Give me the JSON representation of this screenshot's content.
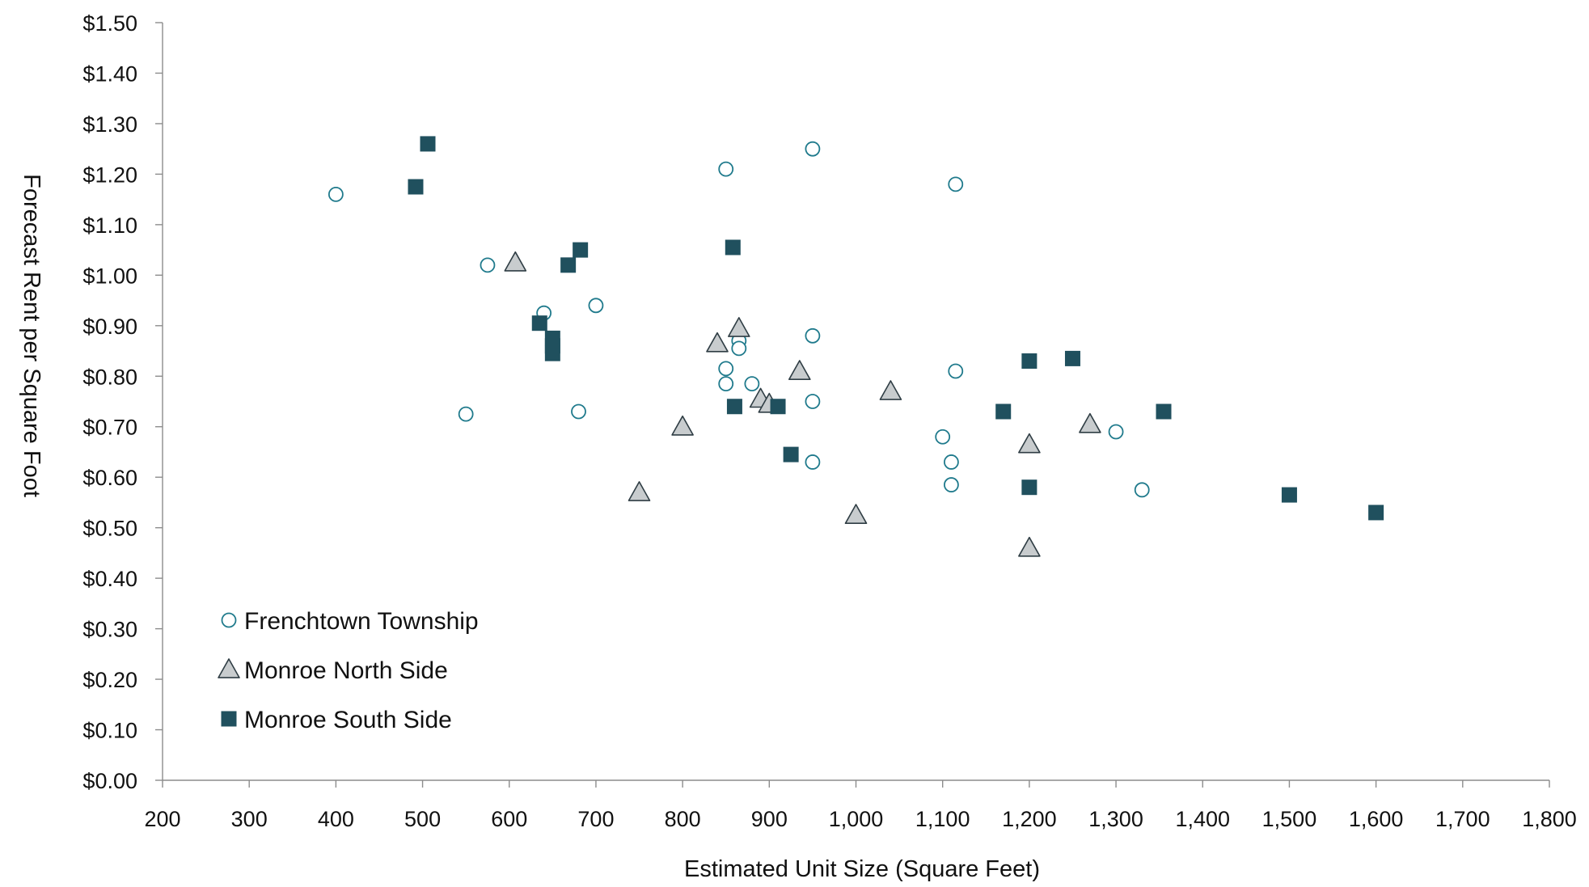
{
  "chart_data": {
    "type": "scatter",
    "xlabel": "Estimated Unit Size (Square Feet)",
    "ylabel": "Forecast Rent per Square Foot",
    "xlim": [
      200,
      1800
    ],
    "ylim": [
      0,
      1.5
    ],
    "x_ticks": [
      200,
      300,
      400,
      500,
      600,
      700,
      800,
      900,
      1000,
      1100,
      1200,
      1300,
      1400,
      1500,
      1600,
      1700,
      1800
    ],
    "x_tick_labels": [
      "200",
      "300",
      "400",
      "500",
      "600",
      "700",
      "800",
      "900",
      "1,000",
      "1,100",
      "1,200",
      "1,300",
      "1,400",
      "1,500",
      "1,600",
      "1,700",
      "1,800"
    ],
    "y_ticks": [
      0,
      0.1,
      0.2,
      0.3,
      0.4,
      0.5,
      0.6,
      0.7,
      0.8,
      0.9,
      1.0,
      1.1,
      1.2,
      1.3,
      1.4,
      1.5
    ],
    "y_tick_labels": [
      "$0.00",
      "$0.10",
      "$0.20",
      "$0.30",
      "$0.40",
      "$0.50",
      "$0.60",
      "$0.70",
      "$0.80",
      "$0.90",
      "$1.00",
      "$1.10",
      "$1.20",
      "$1.30",
      "$1.40",
      "$1.50"
    ],
    "grid": false,
    "legend_position": "bottom-left",
    "series": [
      {
        "name": "Frenchtown Township",
        "marker": "circle-open",
        "color": "#1f7a8c",
        "points": [
          [
            400,
            1.16
          ],
          [
            550,
            0.725
          ],
          [
            575,
            1.02
          ],
          [
            640,
            0.925
          ],
          [
            680,
            0.73
          ],
          [
            700,
            0.94
          ],
          [
            850,
            1.21
          ],
          [
            850,
            0.815
          ],
          [
            850,
            0.785
          ],
          [
            865,
            0.87
          ],
          [
            865,
            0.855
          ],
          [
            880,
            0.785
          ],
          [
            950,
            1.25
          ],
          [
            950,
            0.88
          ],
          [
            950,
            0.75
          ],
          [
            950,
            0.63
          ],
          [
            1100,
            0.68
          ],
          [
            1110,
            0.63
          ],
          [
            1110,
            0.585
          ],
          [
            1115,
            1.18
          ],
          [
            1115,
            0.81
          ],
          [
            1300,
            0.69
          ],
          [
            1330,
            0.575
          ]
        ]
      },
      {
        "name": "Monroe North Side",
        "marker": "triangle",
        "color": "#c8ccce",
        "stroke": "#2f3d44",
        "points": [
          [
            607,
            1.025
          ],
          [
            750,
            0.57
          ],
          [
            800,
            0.7
          ],
          [
            840,
            0.865
          ],
          [
            865,
            0.895
          ],
          [
            890,
            0.755
          ],
          [
            900,
            0.745
          ],
          [
            935,
            0.81
          ],
          [
            1000,
            0.525
          ],
          [
            1040,
            0.77
          ],
          [
            1200,
            0.665
          ],
          [
            1200,
            0.46
          ],
          [
            1270,
            0.705
          ]
        ]
      },
      {
        "name": "Monroe South Side",
        "marker": "square",
        "color": "#20505e",
        "points": [
          [
            492,
            1.175
          ],
          [
            506,
            1.26
          ],
          [
            635,
            0.905
          ],
          [
            650,
            0.875
          ],
          [
            650,
            0.86
          ],
          [
            650,
            0.845
          ],
          [
            668,
            1.02
          ],
          [
            682,
            1.05
          ],
          [
            858,
            1.055
          ],
          [
            860,
            0.74
          ],
          [
            910,
            0.74
          ],
          [
            925,
            0.645
          ],
          [
            1170,
            0.73
          ],
          [
            1200,
            0.83
          ],
          [
            1200,
            0.58
          ],
          [
            1250,
            0.835
          ],
          [
            1355,
            0.73
          ],
          [
            1500,
            0.565
          ],
          [
            1600,
            0.53
          ]
        ]
      }
    ]
  }
}
